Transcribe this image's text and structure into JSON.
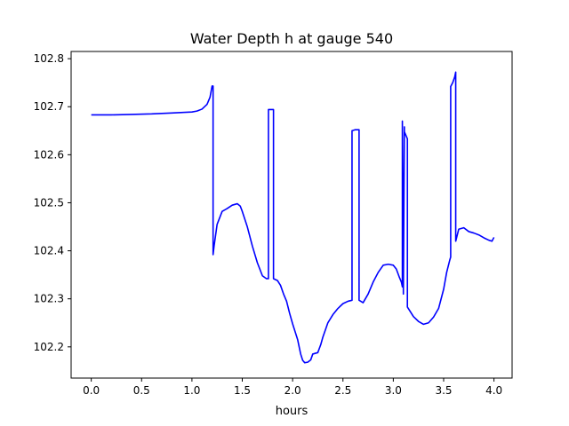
{
  "chart_data": {
    "type": "line",
    "title": "Water Depth h at gauge 540",
    "xlabel": "hours",
    "ylabel": "",
    "xlim": [
      -0.2,
      4.18
    ],
    "ylim": [
      102.135,
      102.815
    ],
    "xticks": [
      0.0,
      0.5,
      1.0,
      1.5,
      2.0,
      2.5,
      3.0,
      3.5,
      4.0
    ],
    "xtick_labels": [
      "0.0",
      "0.5",
      "1.0",
      "1.5",
      "2.0",
      "2.5",
      "3.0",
      "3.5",
      "4.0"
    ],
    "yticks": [
      102.2,
      102.3,
      102.4,
      102.5,
      102.6,
      102.7,
      102.8
    ],
    "ytick_labels": [
      "102.2",
      "102.3",
      "102.4",
      "102.5",
      "102.6",
      "102.7",
      "102.8"
    ],
    "grid": false,
    "legend": "none",
    "series": [
      {
        "color": "#0000ff",
        "x": [
          0.0,
          0.2,
          0.4,
          0.6,
          0.8,
          1.0,
          1.05,
          1.1,
          1.15,
          1.18,
          1.2,
          1.21,
          1.21,
          1.22,
          1.25,
          1.3,
          1.35,
          1.4,
          1.45,
          1.48,
          1.5,
          1.55,
          1.6,
          1.65,
          1.7,
          1.74,
          1.76,
          1.76,
          1.79,
          1.79,
          1.81,
          1.81,
          1.85,
          1.88,
          1.91,
          1.94,
          1.97,
          2.0,
          2.05,
          2.08,
          2.1,
          2.12,
          2.15,
          2.18,
          2.2,
          2.25,
          2.28,
          2.3,
          2.35,
          2.4,
          2.45,
          2.5,
          2.55,
          2.59,
          2.59,
          2.62,
          2.65,
          2.66,
          2.66,
          2.7,
          2.75,
          2.8,
          2.85,
          2.9,
          2.95,
          3.0,
          3.03,
          3.06,
          3.08,
          3.09,
          3.09,
          3.1,
          3.11,
          3.11,
          3.12,
          3.13,
          3.14,
          3.14,
          3.2,
          3.25,
          3.3,
          3.35,
          3.4,
          3.45,
          3.5,
          3.53,
          3.56,
          3.57,
          3.57,
          3.59,
          3.61,
          3.62,
          3.62,
          3.65,
          3.7,
          3.75,
          3.8,
          3.85,
          3.9,
          3.95,
          3.98,
          4.0
        ],
        "y": [
          102.683,
          102.683,
          102.684,
          102.685,
          102.687,
          102.689,
          102.691,
          102.695,
          102.705,
          102.72,
          102.743,
          102.743,
          102.392,
          102.41,
          102.455,
          102.482,
          102.488,
          102.495,
          102.498,
          102.493,
          102.482,
          102.45,
          102.41,
          102.375,
          102.348,
          102.342,
          102.342,
          102.694,
          102.694,
          102.694,
          102.694,
          102.342,
          102.338,
          102.328,
          102.31,
          102.295,
          102.27,
          102.248,
          102.215,
          102.185,
          102.172,
          102.167,
          102.168,
          102.173,
          102.185,
          102.188,
          102.205,
          102.22,
          102.25,
          102.267,
          102.28,
          102.29,
          102.295,
          102.297,
          102.65,
          102.652,
          102.652,
          102.652,
          102.297,
          102.292,
          102.31,
          102.335,
          102.355,
          102.37,
          102.372,
          102.37,
          102.362,
          102.345,
          102.335,
          102.325,
          102.67,
          102.31,
          102.658,
          102.648,
          102.643,
          102.638,
          102.633,
          102.283,
          102.263,
          102.253,
          102.247,
          102.25,
          102.262,
          102.28,
          102.32,
          102.355,
          102.38,
          102.387,
          102.742,
          102.75,
          102.762,
          102.772,
          102.42,
          102.445,
          102.448,
          102.44,
          102.437,
          102.433,
          102.427,
          102.422,
          102.42,
          102.428
        ]
      }
    ]
  }
}
